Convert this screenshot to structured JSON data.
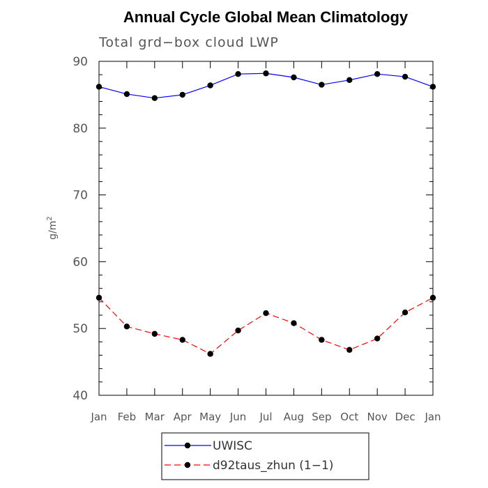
{
  "chart_data": {
    "type": "line",
    "title": "Annual Cycle Global Mean Climatology",
    "subtitle": "Total grd−box cloud LWP",
    "ylabel_base": "g/m",
    "ylabel_sup": "2",
    "xlabel": "",
    "categories": [
      "Jan",
      "Feb",
      "Mar",
      "Apr",
      "May",
      "Jun",
      "Jul",
      "Aug",
      "Sep",
      "Oct",
      "Nov",
      "Dec",
      "Jan"
    ],
    "ylim": [
      40,
      90
    ],
    "yticks": [
      40,
      50,
      60,
      70,
      80,
      90
    ],
    "grid": false,
    "legend_position": "bottom",
    "series": [
      {
        "name": "UWISC",
        "color": "#0000ff",
        "dash": "solid",
        "values": [
          86.2,
          85.1,
          84.5,
          85.0,
          86.4,
          88.1,
          88.2,
          87.6,
          86.5,
          87.2,
          88.1,
          87.7,
          86.2
        ]
      },
      {
        "name": "d92taus_zhun (1−1)",
        "color": "#ff0000",
        "dash": "dashed",
        "values": [
          54.6,
          50.3,
          49.2,
          48.3,
          46.2,
          49.7,
          52.3,
          50.8,
          48.3,
          46.8,
          48.5,
          52.4,
          54.6
        ]
      }
    ]
  }
}
